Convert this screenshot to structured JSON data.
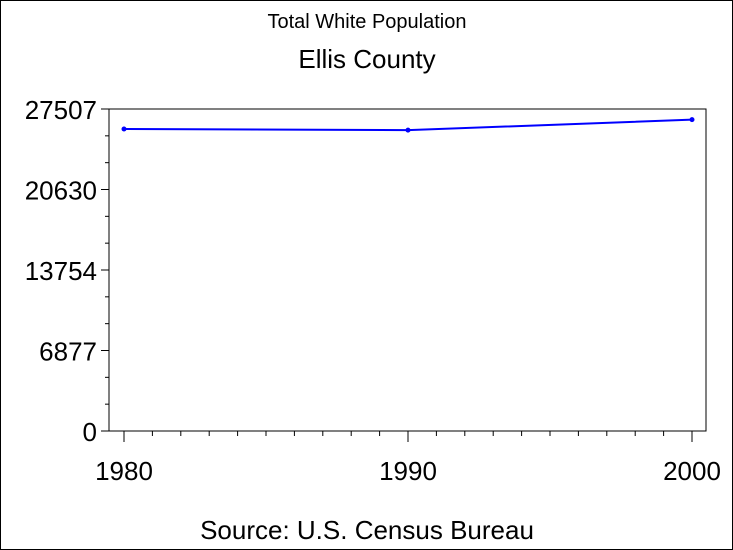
{
  "chart_data": {
    "type": "line",
    "title": "Total White Population",
    "subtitle": "Ellis County",
    "footnote": "Source: U.S. Census Bureau",
    "xlabel": "",
    "ylabel": "",
    "x": [
      1980,
      1990,
      2000
    ],
    "series": [
      {
        "values": [
          25800,
          25700,
          26600
        ],
        "color": "#0000ff"
      }
    ],
    "xlim": [
      1980,
      2000
    ],
    "ylim": [
      0,
      27507
    ],
    "xticks": [
      1980,
      1990,
      2000
    ],
    "yticks": [
      0,
      6877,
      13754,
      20630,
      27507
    ],
    "grid": false,
    "legend": "none"
  }
}
